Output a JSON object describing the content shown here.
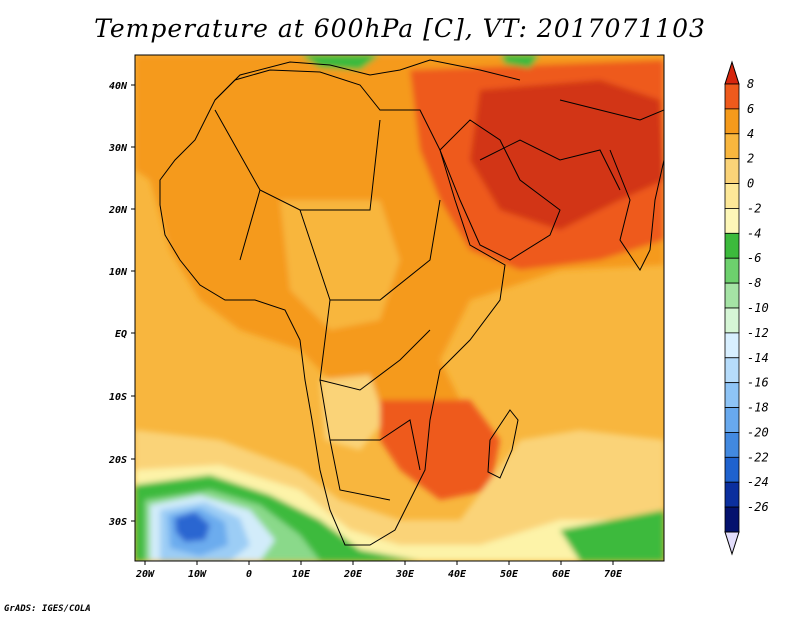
{
  "title": "Temperature at 600hPa [C], VT: 2017071103",
  "credit": "GrADS: IGES/COLA",
  "map": {
    "lon_labels": [
      "20W",
      "10W",
      "0",
      "10E",
      "20E",
      "30E",
      "40E",
      "50E",
      "60E",
      "70E"
    ],
    "lat_labels": [
      "40N",
      "30N",
      "20N",
      "10N",
      "EQ",
      "10S",
      "20S",
      "30S"
    ],
    "colors": {
      "deep_red": "#d23417",
      "red": "#ee5a1c",
      "orange": "#f59a1b",
      "light_orange": "#f8b63e",
      "pale_orange": "#fad378",
      "cream": "#fdf3a8",
      "green": "#3cba3c",
      "light_green": "#8ad98a",
      "pale_green": "#c8f0c8",
      "pale_blue": "#d2ecfa",
      "light_blue": "#9ccdf5",
      "blue": "#6cacee",
      "mid_blue": "#4b90e6",
      "dark_blue": "#2a66d1"
    }
  },
  "colorbar": {
    "labels": [
      "8",
      "6",
      "4",
      "2",
      "0",
      "-2",
      "-4",
      "-6",
      "-8",
      "-10",
      "-12",
      "-14",
      "-16",
      "-18",
      "-20",
      "-22",
      "-24",
      "-26"
    ],
    "colors": [
      "#d6260e",
      "#ee5a1c",
      "#f59a1b",
      "#f8b63e",
      "#fad378",
      "#fde898",
      "#fdf7b8",
      "#3cba3c",
      "#6dd06d",
      "#a5e3a5",
      "#d6f6d6",
      "#d8efff",
      "#b6dcfb",
      "#8ec4f6",
      "#68a9ee",
      "#4289e0",
      "#1f62ce",
      "#0b2f9e",
      "#04126e",
      "#e2ddfb"
    ]
  }
}
